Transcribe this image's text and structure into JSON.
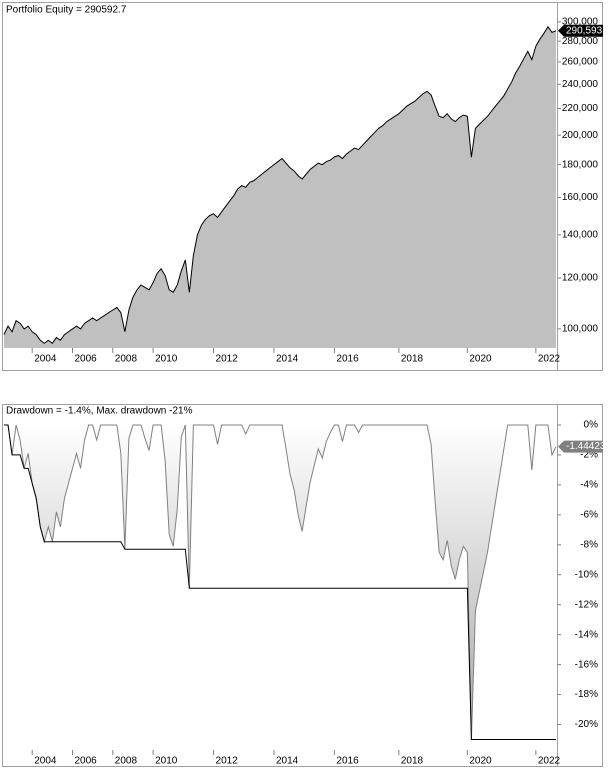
{
  "chart_data": [
    {
      "type": "area",
      "title": "Portfolio Equity = 290592.7",
      "log_scale": true,
      "color": "#000000",
      "fill": "#c0c0c0",
      "categories": [
        null,
        null,
        null,
        null,
        null,
        null,
        null,
        "2004",
        null,
        null,
        null,
        null,
        null,
        null,
        null,
        null,
        null,
        "2006",
        null,
        null,
        null,
        null,
        null,
        null,
        null,
        null,
        null,
        "2008",
        null,
        null,
        null,
        null,
        null,
        null,
        null,
        null,
        null,
        "2010",
        null,
        null,
        null,
        null,
        null,
        null,
        null,
        null,
        null,
        null,
        null,
        null,
        null,
        null,
        "2012",
        null,
        null,
        null,
        null,
        null,
        null,
        null,
        null,
        null,
        null,
        null,
        null,
        null,
        null,
        "2014",
        null,
        null,
        null,
        null,
        null,
        null,
        null,
        null,
        null,
        null,
        null,
        null,
        null,
        null,
        "2016",
        null,
        null,
        null,
        null,
        null,
        null,
        null,
        null,
        null,
        null,
        null,
        null,
        null,
        null,
        null,
        "2018",
        null,
        null,
        null,
        null,
        null,
        null,
        null,
        null,
        null,
        null,
        null,
        null,
        null,
        null,
        null,
        null,
        "2020",
        null,
        null,
        null,
        null,
        null,
        null,
        null,
        null,
        null,
        null,
        null,
        null,
        null,
        null,
        null,
        null,
        "2022",
        null,
        null,
        null,
        null,
        null
      ],
      "values": [
        98000,
        101000,
        99000,
        103000,
        102000,
        100000,
        101000,
        99000,
        98000,
        96000,
        95000,
        96000,
        95000,
        97000,
        96000,
        98000,
        99000,
        100000,
        101000,
        100000,
        102000,
        103000,
        104000,
        103000,
        104000,
        105000,
        106000,
        107000,
        108000,
        106000,
        99000,
        107000,
        112000,
        115000,
        117000,
        116000,
        115000,
        118000,
        122000,
        124000,
        121000,
        115000,
        114000,
        117000,
        123000,
        128000,
        114000,
        130000,
        140000,
        145000,
        148000,
        150000,
        151000,
        149000,
        152000,
        155000,
        158000,
        161000,
        165000,
        167000,
        166000,
        169000,
        170000,
        172000,
        174000,
        176000,
        178000,
        180000,
        182000,
        184000,
        181000,
        178000,
        176000,
        173000,
        171000,
        174000,
        177000,
        179000,
        181000,
        180000,
        182000,
        183000,
        185000,
        186000,
        184000,
        187000,
        189000,
        191000,
        190000,
        193000,
        196000,
        199000,
        202000,
        205000,
        207000,
        210000,
        212000,
        214000,
        216000,
        219000,
        222000,
        224000,
        226000,
        229000,
        232000,
        234000,
        231000,
        222000,
        214000,
        213000,
        216000,
        212000,
        210000,
        213000,
        215000,
        214000,
        184900,
        205000,
        208000,
        211000,
        214000,
        218000,
        222000,
        226000,
        230000,
        236000,
        242000,
        250000,
        256000,
        263000,
        270000,
        262000,
        275000,
        282000,
        288000,
        294800,
        289000,
        290592.7
      ],
      "ylim": [
        93400,
        321000
      ],
      "yticks": [
        {
          "value": 100000,
          "label": "100,000"
        },
        {
          "value": 120000,
          "label": "120,000"
        },
        {
          "value": 140000,
          "label": "140,000"
        },
        {
          "value": 160000,
          "label": "160,000"
        },
        {
          "value": 180000,
          "label": "180,000"
        },
        {
          "value": 200000,
          "label": "200,000"
        },
        {
          "value": 220000,
          "label": "220,000"
        },
        {
          "value": 240000,
          "label": "240,000"
        },
        {
          "value": 260000,
          "label": "260,000"
        },
        {
          "value": 280000,
          "label": "280,000"
        },
        {
          "value": 300000,
          "label": "300,000"
        }
      ],
      "marker": {
        "value": 290592.7,
        "label": "290,593",
        "color": "#000000"
      }
    },
    {
      "type": "area",
      "title": "Drawdown = -1.4%, Max. drawdown -21%",
      "log_scale": false,
      "categories": [
        null,
        null,
        null,
        null,
        null,
        null,
        null,
        "2004",
        null,
        null,
        null,
        null,
        null,
        null,
        null,
        null,
        null,
        "2006",
        null,
        null,
        null,
        null,
        null,
        null,
        null,
        null,
        null,
        "2008",
        null,
        null,
        null,
        null,
        null,
        null,
        null,
        null,
        null,
        "2010",
        null,
        null,
        null,
        null,
        null,
        null,
        null,
        null,
        null,
        null,
        null,
        null,
        null,
        null,
        "2012",
        null,
        null,
        null,
        null,
        null,
        null,
        null,
        null,
        null,
        null,
        null,
        null,
        null,
        null,
        "2014",
        null,
        null,
        null,
        null,
        null,
        null,
        null,
        null,
        null,
        null,
        null,
        null,
        null,
        null,
        "2016",
        null,
        null,
        null,
        null,
        null,
        null,
        null,
        null,
        null,
        null,
        null,
        null,
        null,
        null,
        null,
        "2018",
        null,
        null,
        null,
        null,
        null,
        null,
        null,
        null,
        null,
        null,
        null,
        null,
        null,
        null,
        null,
        null,
        "2020",
        null,
        null,
        null,
        null,
        null,
        null,
        null,
        null,
        null,
        null,
        null,
        null,
        null,
        null,
        null,
        null,
        "2022",
        null,
        null,
        null,
        null,
        null
      ],
      "series": [
        {
          "color": "#808080",
          "fill": "#a8a8a8",
          "values": [
            0,
            0,
            -2.0,
            0,
            -1.0,
            -2.9,
            -1.9,
            -3.9,
            -4.9,
            -6.8,
            -7.8,
            -6.8,
            -7.8,
            -5.8,
            -6.8,
            -4.9,
            -3.9,
            -2.9,
            -1.9,
            -2.9,
            -1.0,
            0,
            0,
            -1.0,
            0,
            0,
            0,
            0,
            0,
            -1.9,
            -8.3,
            -0.9,
            0,
            0,
            0,
            -0.9,
            -1.7,
            0,
            0,
            0,
            -2.4,
            -7.3,
            -8.1,
            -5.6,
            -0.8,
            0,
            -10.9,
            0,
            0,
            0,
            0,
            0,
            0,
            -1.3,
            0,
            0,
            0,
            0,
            0,
            0,
            -0.6,
            0,
            0,
            0,
            0,
            0,
            0,
            0,
            0,
            0,
            -1.6,
            -3.3,
            -4.3,
            -6.0,
            -7.1,
            -5.4,
            -3.8,
            -2.7,
            -1.6,
            -2.2,
            -1.1,
            -0.5,
            0,
            0,
            -1.1,
            0,
            0,
            0,
            -0.5,
            0,
            0,
            0,
            0,
            0,
            0,
            0,
            0,
            0,
            0,
            0,
            0,
            0,
            0,
            0,
            0,
            0,
            -1.3,
            -5.1,
            -8.5,
            -9.0,
            -7.7,
            -9.4,
            -10.3,
            -9.0,
            -8.1,
            -8.5,
            -21.0,
            -12.4,
            -11.1,
            -9.8,
            -8.5,
            -6.8,
            -5.1,
            -3.4,
            -1.7,
            0,
            0,
            0,
            0,
            0,
            0,
            -3.0,
            0,
            0,
            0,
            0,
            -2.0,
            -1.44423
          ]
        },
        {
          "color": "#000000",
          "values": [
            0,
            0,
            -2.0,
            -2.0,
            -2.0,
            -2.9,
            -2.9,
            -3.9,
            -4.9,
            -6.8,
            -7.8,
            -7.8,
            -7.8,
            -7.8,
            -7.8,
            -7.8,
            -7.8,
            -7.8,
            -7.8,
            -7.8,
            -7.8,
            -7.8,
            -7.8,
            -7.8,
            -7.8,
            -7.8,
            -7.8,
            -7.8,
            -7.8,
            -7.8,
            -8.3,
            -8.3,
            -8.3,
            -8.3,
            -8.3,
            -8.3,
            -8.3,
            -8.3,
            -8.3,
            -8.3,
            -8.3,
            -8.3,
            -8.3,
            -8.3,
            -8.3,
            -8.3,
            -10.9,
            -10.9,
            -10.9,
            -10.9,
            -10.9,
            -10.9,
            -10.9,
            -10.9,
            -10.9,
            -10.9,
            -10.9,
            -10.9,
            -10.9,
            -10.9,
            -10.9,
            -10.9,
            -10.9,
            -10.9,
            -10.9,
            -10.9,
            -10.9,
            -10.9,
            -10.9,
            -10.9,
            -10.9,
            -10.9,
            -10.9,
            -10.9,
            -10.9,
            -10.9,
            -10.9,
            -10.9,
            -10.9,
            -10.9,
            -10.9,
            -10.9,
            -10.9,
            -10.9,
            -10.9,
            -10.9,
            -10.9,
            -10.9,
            -10.9,
            -10.9,
            -10.9,
            -10.9,
            -10.9,
            -10.9,
            -10.9,
            -10.9,
            -10.9,
            -10.9,
            -10.9,
            -10.9,
            -10.9,
            -10.9,
            -10.9,
            -10.9,
            -10.9,
            -10.9,
            -10.9,
            -10.9,
            -10.9,
            -10.9,
            -10.9,
            -10.9,
            -10.9,
            -10.9,
            -10.9,
            -10.9,
            -21.0,
            -21.0,
            -21.0,
            -21.0,
            -21.0,
            -21.0,
            -21.0,
            -21.0,
            -21.0,
            -21.0,
            -21.0,
            -21.0,
            -21.0,
            -21.0,
            -21.0,
            -21.0,
            -21.0,
            -21.0,
            -21.0,
            -21.0,
            -21.0,
            -21.0
          ]
        }
      ],
      "ylim": [
        -21.7,
        1.2
      ],
      "yticks": [
        {
          "value": 0,
          "label": "0%"
        },
        {
          "value": -2,
          "label": "-2%"
        },
        {
          "value": -4,
          "label": "-4%"
        },
        {
          "value": -6,
          "label": "-6%"
        },
        {
          "value": -8,
          "label": "-8%"
        },
        {
          "value": -10,
          "label": "-10%"
        },
        {
          "value": -12,
          "label": "-12%"
        },
        {
          "value": -14,
          "label": "-14%"
        },
        {
          "value": -16,
          "label": "-16%"
        },
        {
          "value": -18,
          "label": "-18%"
        },
        {
          "value": -20,
          "label": "-20%"
        }
      ],
      "marker": {
        "value": -1.44423,
        "label": "-1.44423",
        "color": "#808080"
      }
    }
  ]
}
